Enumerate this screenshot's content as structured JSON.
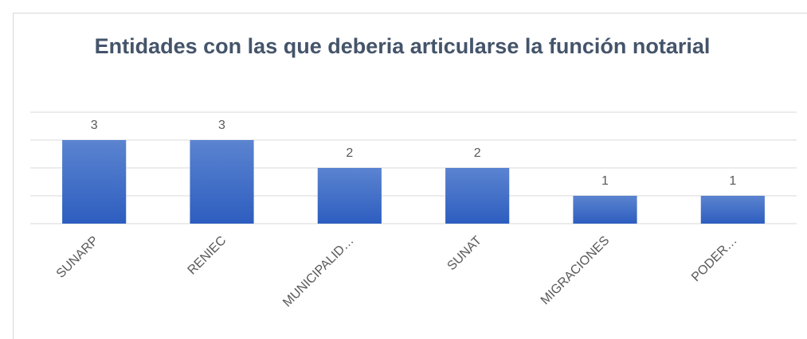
{
  "chart_data": {
    "type": "bar",
    "title": "Entidades con las que deberia articularse la función notarial",
    "categories": [
      "SUNARP",
      "RENIEC",
      "MUNICIPALID…",
      "SUNAT",
      "MIGRACIONES",
      "PODER…"
    ],
    "values": [
      3,
      3,
      2,
      2,
      1,
      1
    ],
    "color": "#4472c4",
    "ylim": [
      0,
      4
    ],
    "yticks": [
      0,
      1,
      2,
      3,
      4
    ],
    "grid": true
  }
}
